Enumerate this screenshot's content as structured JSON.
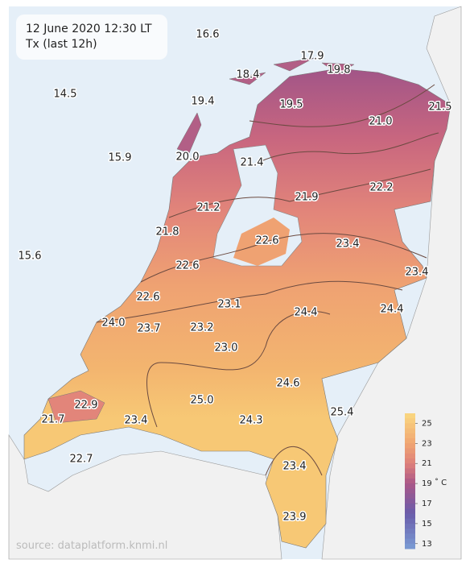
{
  "header": {
    "title": "12 June 2020 12:30 LT",
    "subtitle": "Tx (last 12h)"
  },
  "stations": [
    "16.6",
    "17.9",
    "18.4",
    "19.8",
    "14.5",
    "19.4",
    "19.5",
    "21.5",
    "21.0",
    "15.9",
    "20.0",
    "21.4",
    "21.9",
    "22.2",
    "21.2",
    "21.8",
    "22.6",
    "23.4",
    "15.6",
    "22.6",
    "23.4",
    "22.6",
    "23.1",
    "24.4",
    "24.4",
    "24.0",
    "23.7",
    "23.2",
    "23.0",
    "24.6",
    "25.0",
    "25.4",
    "22.9",
    "21.7",
    "23.4",
    "24.3",
    "22.7",
    "23.4",
    "23.9"
  ],
  "colorbar": {
    "range": [
      12.5,
      26
    ],
    "ticks": [
      25,
      23,
      21,
      19,
      17,
      15,
      13
    ],
    "unit": "˚ C"
  },
  "source": "source: dataplatform.knmi.nl"
}
